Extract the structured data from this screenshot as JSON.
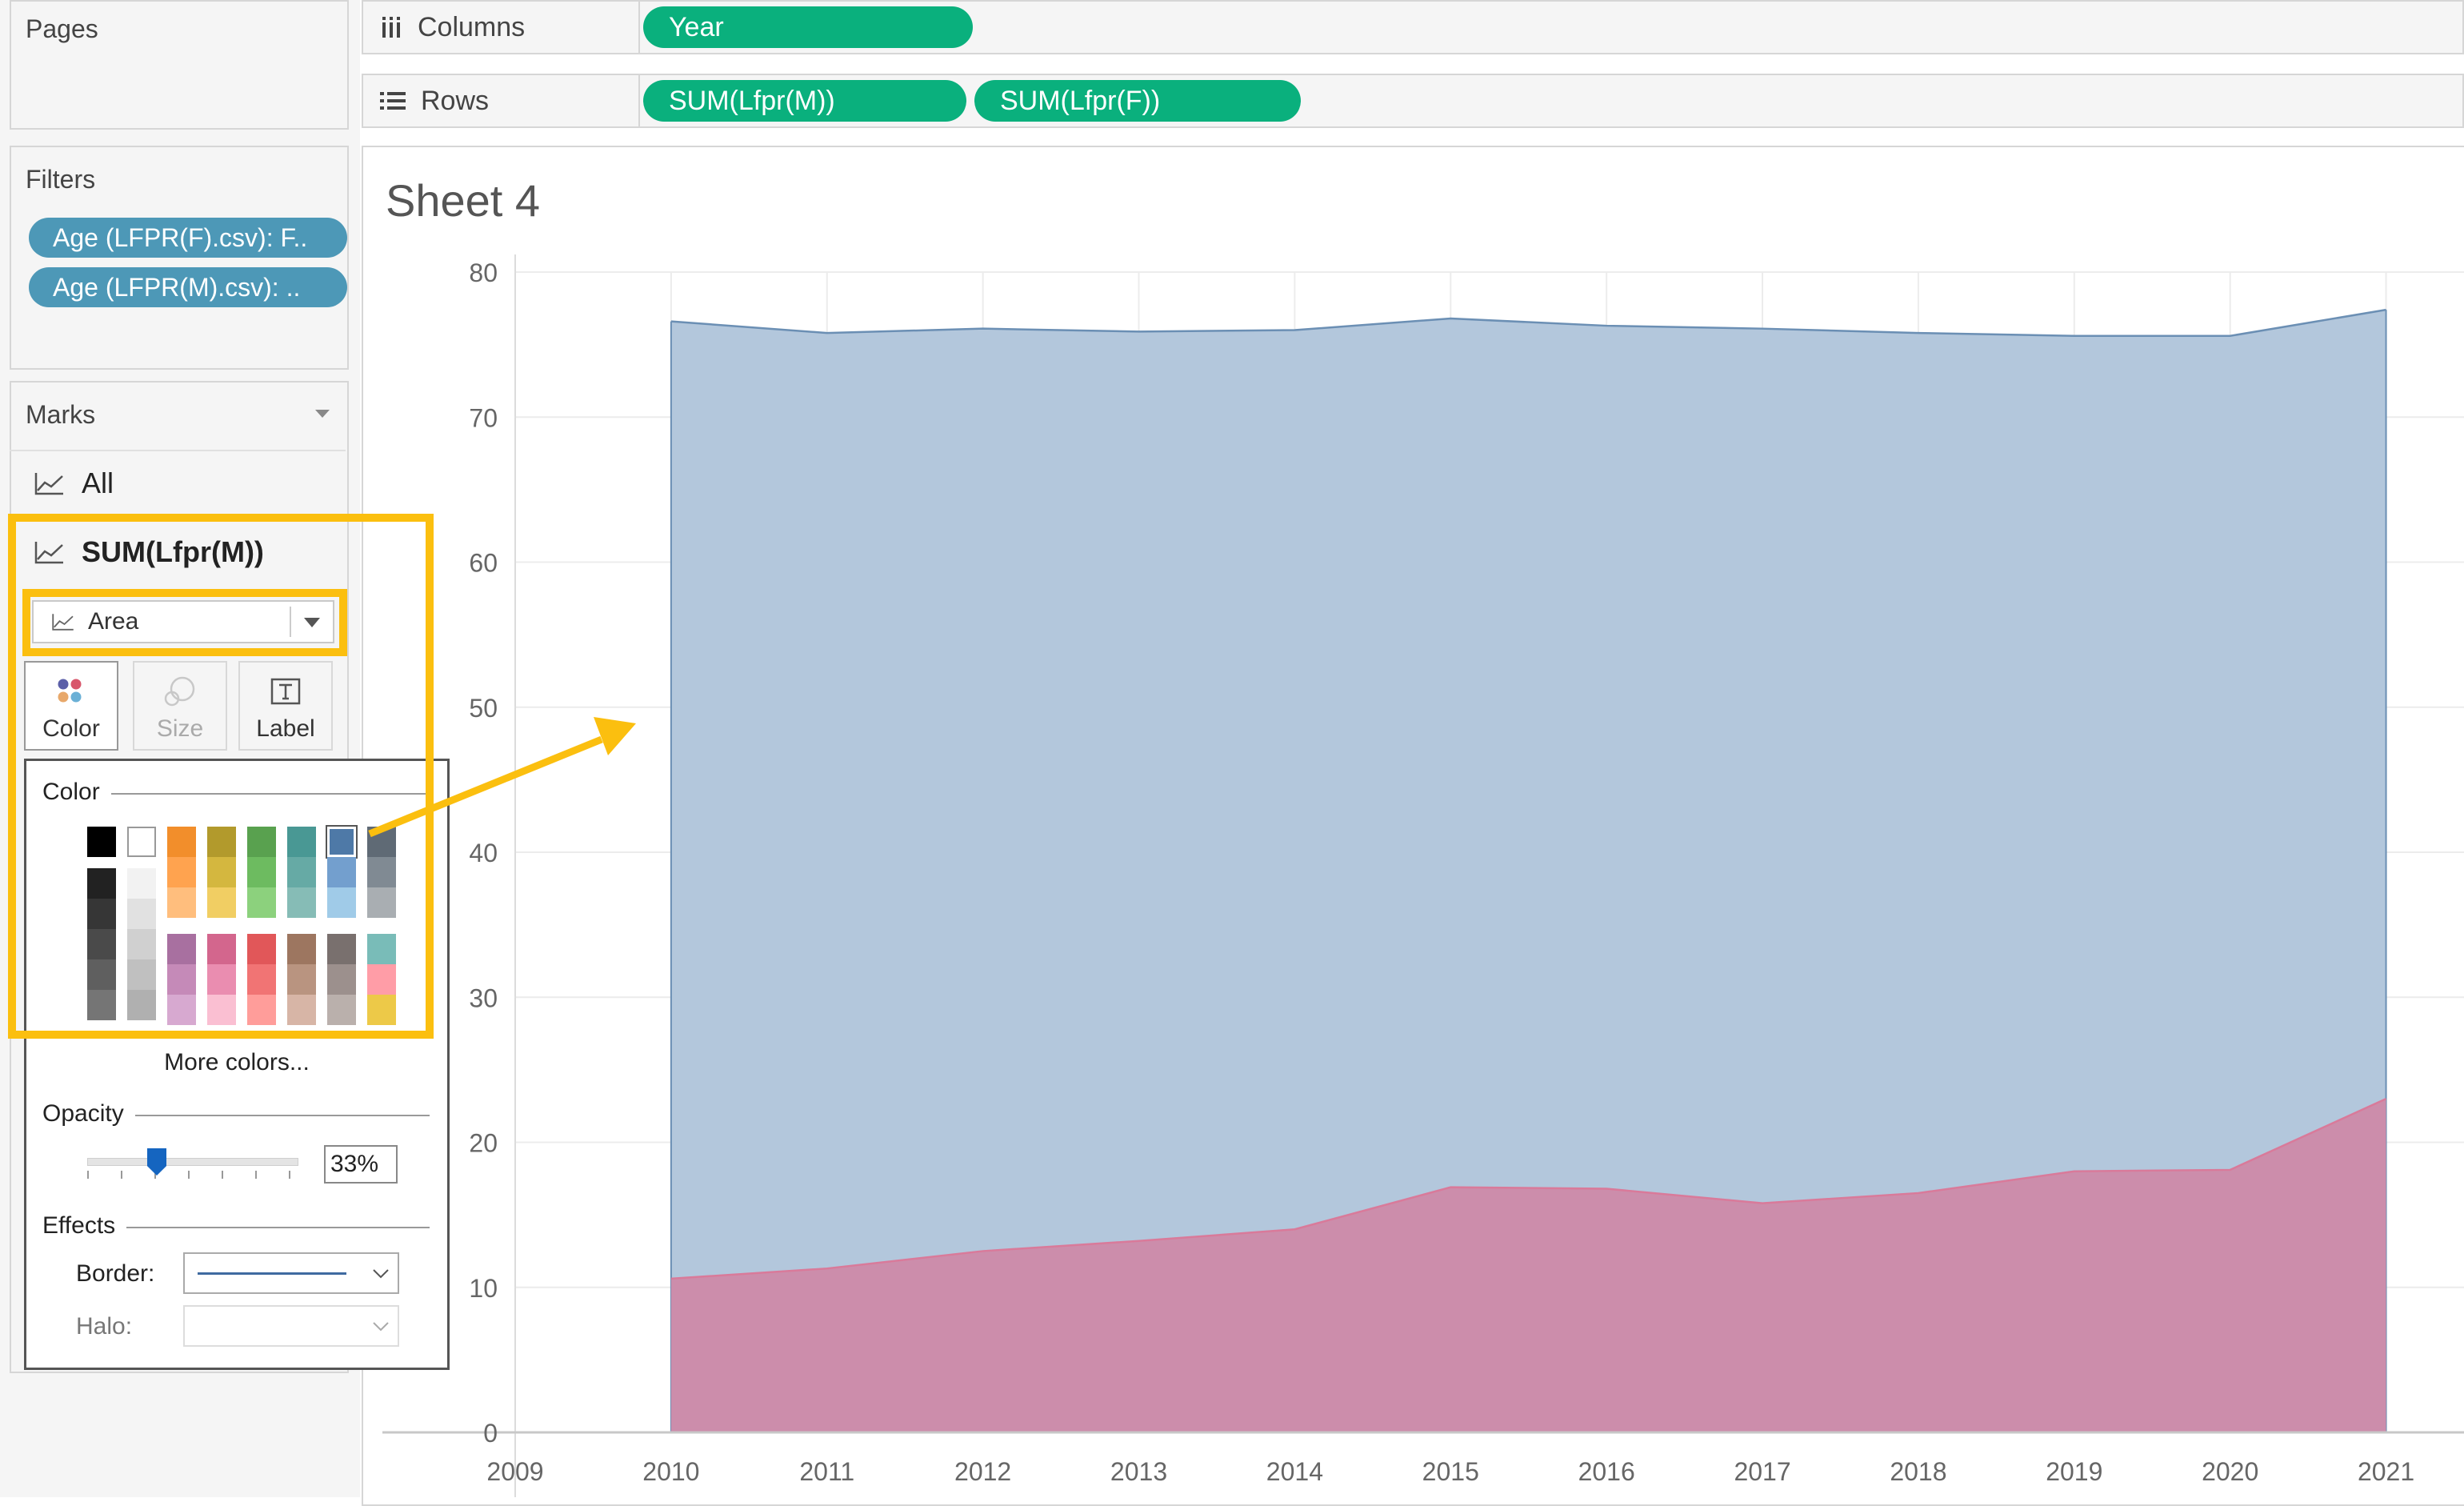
{
  "pages_card": {
    "title": "Pages"
  },
  "filters_card": {
    "title": "Filters",
    "items": [
      "Age (LFPR(F).csv): F..",
      "Age (LFPR(M).csv): .."
    ]
  },
  "marks_card": {
    "title": "Marks",
    "rows": [
      {
        "label": "All"
      },
      {
        "label": "SUM(Lfpr(M))"
      }
    ],
    "mark_type": "Area",
    "buttons": [
      {
        "label": "Color",
        "icon": "color-dots-icon"
      },
      {
        "label": "Size",
        "icon": "size-circles-icon"
      },
      {
        "label": "Label",
        "icon": "label-t-icon"
      }
    ]
  },
  "shelves": {
    "columns": {
      "label": "Columns",
      "pills": [
        "Year"
      ]
    },
    "rows": {
      "label": "Rows",
      "pills": [
        "SUM(Lfpr(M))",
        "SUM(Lfpr(F))"
      ]
    }
  },
  "sheet": {
    "title": "Sheet 4"
  },
  "color_popup": {
    "color_section": "Color",
    "more_colors": "More colors...",
    "opacity_section": "Opacity",
    "opacity_value": "33%",
    "opacity_level": 0.33,
    "effects_section": "Effects",
    "border_label": "Border:",
    "halo_label": "Halo:",
    "palette_top": [
      [
        "#000000",
        "#222222",
        "#363636",
        "#4a4a4a",
        "#5f5f5f",
        "#757575"
      ],
      [
        "#ffffff",
        "#f2f2f2",
        "#e1e1e1",
        "#d0d0d0",
        "#c0c0c0",
        "#b0b0b0"
      ],
      [
        "#f28e2b",
        "#ffa34f",
        "#ffbe7d"
      ],
      [
        "#b29a2c",
        "#d4b73f",
        "#f1ce63"
      ],
      [
        "#59a14f",
        "#6dbb60",
        "#8cd17d"
      ],
      [
        "#499894",
        "#66aaa5",
        "#86bcb6"
      ],
      [
        "#4e79a7",
        "#739fce",
        "#a0cbe8"
      ],
      [
        "#5f6a75",
        "#808a93",
        "#a9aeb2"
      ]
    ],
    "palette_bottom": [
      [
        "#a870a0",
        "#c58ab8",
        "#d7a9d0"
      ],
      [
        "#d3668d",
        "#ea8db0",
        "#fabfd2"
      ],
      [
        "#e15759",
        "#f17474",
        "#ff9d9a"
      ],
      [
        "#9d7660",
        "#b99480",
        "#d7b5a6"
      ],
      [
        "#79706e",
        "#9c908d",
        "#bab0ac"
      ],
      [
        "#79bcb8",
        "#ff9da7",
        "#edc948"
      ]
    ],
    "selected_color": "#4e79a7"
  },
  "chart_data": {
    "type": "area",
    "x": [
      2010,
      2011,
      2012,
      2013,
      2014,
      2015,
      2016,
      2017,
      2018,
      2019,
      2020,
      2021
    ],
    "series": [
      {
        "name": "SUM(Lfpr(M))",
        "values": [
          76.6,
          75.8,
          76.1,
          75.9,
          76.0,
          76.8,
          76.3,
          76.1,
          75.8,
          75.6,
          75.6,
          77.4
        ],
        "color": "#b3c7dc"
      },
      {
        "name": "SUM(Lfpr(F))",
        "values": [
          10.6,
          11.3,
          12.5,
          13.2,
          14.0,
          16.9,
          16.8,
          15.8,
          16.5,
          18.0,
          18.1,
          23.0
        ],
        "color": "#cc8dab"
      }
    ],
    "xlim": [
      2009,
      2021.5
    ],
    "ylim": [
      0,
      80
    ],
    "yticks": [
      0,
      10,
      20,
      30,
      40,
      50,
      60,
      70,
      80
    ],
    "xticks": [
      2009,
      2010,
      2011,
      2012,
      2013,
      2014,
      2015,
      2016,
      2017,
      2018,
      2019,
      2020,
      2021
    ],
    "grid": true
  },
  "colors": {
    "green_pill": "#0ab07d",
    "filter_pill": "#4d98b7",
    "highlight": "#fbbf0f"
  }
}
